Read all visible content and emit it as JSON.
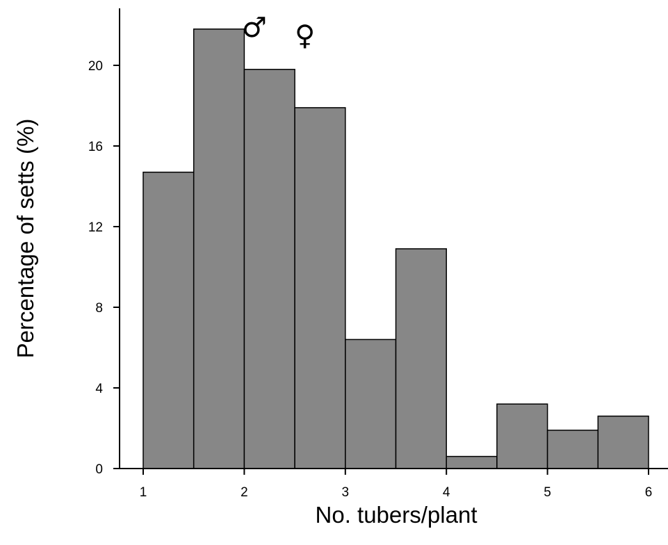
{
  "chart_data": {
    "type": "bar",
    "subtype": "histogram",
    "bin_edges": [
      1,
      1.5,
      2,
      2.5,
      3,
      3.5,
      4,
      4.5,
      5,
      5.5,
      6
    ],
    "values": [
      14.7,
      21.8,
      19.8,
      17.9,
      6.4,
      10.9,
      0.6,
      3.2,
      1.9,
      2.6
    ],
    "xlabel": "No. tubers/plant",
    "ylabel": "Percentage of setts (%)",
    "xlim": [
      0.8,
      6.2
    ],
    "ylim": [
      0,
      22.4
    ],
    "x_ticks": [
      "1",
      "2",
      "3",
      "4",
      "5",
      "6"
    ],
    "y_ticks": [
      "0",
      "4",
      "8",
      "12",
      "16",
      "20"
    ],
    "grid": false,
    "bar_color": "#878787",
    "bar_edge_color": "#000000",
    "annotations": [
      {
        "text": "♂",
        "x": 2.1,
        "y": 21.9
      },
      {
        "text": "♀",
        "x": 2.6,
        "y": 21.5
      }
    ]
  }
}
